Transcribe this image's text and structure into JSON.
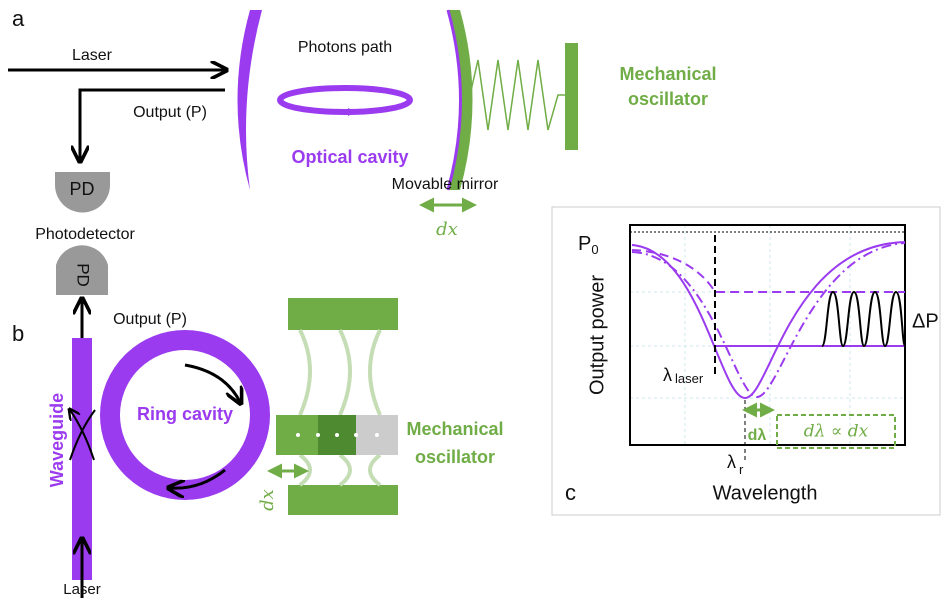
{
  "panel_a": {
    "label": "a",
    "laser": "Laser",
    "output": "Output (P)",
    "photons_path": "Photons path",
    "optical_cavity": "Optical cavity",
    "movable_mirror": "Movable mirror",
    "dx": "dx",
    "mechanical_oscillator": [
      "Mechanical",
      "oscillator"
    ],
    "pd": "PD",
    "photodetector": "Photodetector"
  },
  "panel_b": {
    "label": "b",
    "pd": "PD",
    "output": "Output (P)",
    "waveguide": "Waveguide",
    "ring_cavity": "Ring cavity",
    "mechanical_oscillator": [
      "Mechanical",
      "oscillator"
    ],
    "dx": "dx",
    "laser": "Laser"
  },
  "panel_c": {
    "label": "c",
    "y_label": "Output power",
    "x_label": "Wavelength",
    "p0": {
      "base": "P",
      "sub": "0"
    },
    "lambda_laser": {
      "base": "λ",
      "sub": "laser"
    },
    "lambda_r": {
      "base": "λ",
      "sub": "r"
    },
    "delta_p": "ΔP",
    "d_lambda": "dλ",
    "relation": "dλ ∝ dx"
  }
}
